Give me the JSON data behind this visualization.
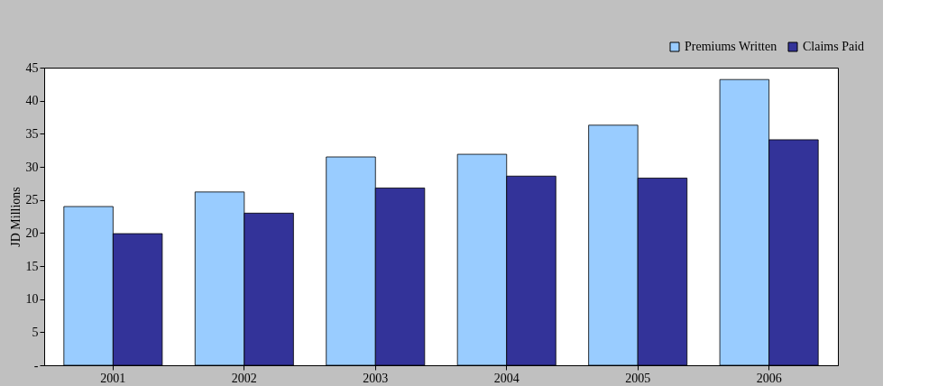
{
  "chart_data": {
    "type": "bar",
    "ylabel": "JD Millions",
    "categories": [
      "2001",
      "2002",
      "2003",
      "2004",
      "2005",
      "2006"
    ],
    "series": [
      {
        "name": "Premiums Written",
        "color": "#99ccff",
        "values": [
          24,
          26.2,
          31.5,
          31.9,
          36.3,
          43.2
        ]
      },
      {
        "name": "Claims Paid",
        "color": "#333399",
        "values": [
          19.9,
          23,
          26.8,
          28.6,
          28.3,
          34.1
        ]
      }
    ],
    "ylim": [
      0,
      45
    ],
    "yticks": [
      {
        "value": 0,
        "label": "-"
      },
      5,
      10,
      15,
      20,
      25,
      30,
      35,
      40,
      45
    ],
    "grid": false,
    "legend": "top right"
  }
}
